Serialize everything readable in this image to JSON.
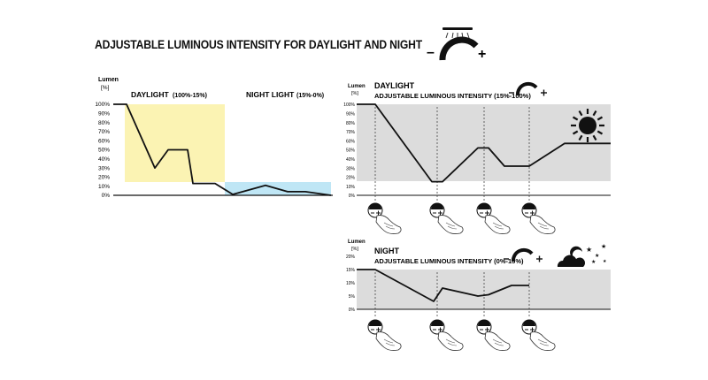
{
  "title": "ADJUSTABLE LUMINOUS INTENSITY FOR DAYLIGHT AND NIGHT",
  "overview": {
    "ylabel": "Lumen",
    "yunit": "[%]",
    "yticks": [
      "100%",
      "90%",
      "80%",
      "70%",
      "60%",
      "50%",
      "40%",
      "30%",
      "20%",
      "10%",
      "0%"
    ],
    "daylight_label": "DAYLIGHT",
    "daylight_range": "(100%-15%)",
    "night_label": "NIGHT LIGHT",
    "night_range": "(15%-0%)",
    "colors": {
      "daylight_zone": "#fbf3b3",
      "night_zone": "#bfe6f5"
    }
  },
  "day_panel": {
    "ylabel": "Lumen",
    "yunit": "[%]",
    "title": "DAYLIGHT",
    "subtitle": "ADJUSTABLE LUMINOUS INTENSITY (15%-100%)",
    "yticks": [
      "100%",
      "90%",
      "80%",
      "70%",
      "60%",
      "50%",
      "40%",
      "30%",
      "20%",
      "10%",
      "0%"
    ],
    "icon": "sun-icon",
    "colors": {
      "zone": "#dcdcdc"
    }
  },
  "night_panel": {
    "ylabel": "Lumen",
    "yunit": "[%]",
    "title": "NIGHT",
    "subtitle": "ADJUSTABLE LUMINOUS INTENSITY (0%-15%)",
    "yticks": [
      "20%",
      "15%",
      "10%",
      "5%",
      "0%"
    ],
    "icon": "moon-clouds-stars-icon",
    "colors": {
      "zone": "#dcdcdc"
    }
  },
  "dimmer_symbol": {
    "minus": "–",
    "plus": "+"
  },
  "chart_data": [
    {
      "type": "line",
      "ylabel": "Lumen",
      "ylim": [
        0,
        100
      ],
      "series": [
        {
          "values": [
            100,
            100,
            30,
            50,
            50,
            13,
            13,
            1,
            11,
            4,
            4,
            0
          ]
        }
      ],
      "zones": [
        {
          "label": "DAYLIGHT",
          "range": [
            15,
            100
          ]
        },
        {
          "label": "NIGHT LIGHT",
          "range": [
            0,
            15
          ]
        }
      ]
    },
    {
      "type": "line",
      "ylabel": "Lumen",
      "ylim": [
        0,
        100
      ],
      "series": [
        {
          "values": [
            100,
            100,
            15,
            15,
            52,
            52,
            32,
            32,
            57,
            57
          ]
        }
      ],
      "zones": [
        {
          "label": "DAYLIGHT",
          "range": [
            15,
            100
          ]
        }
      ]
    },
    {
      "type": "line",
      "ylabel": "Lumen",
      "ylim": [
        0,
        20
      ],
      "series": [
        {
          "values": [
            15,
            15,
            3,
            8,
            5,
            5.5,
            9,
            9
          ]
        }
      ],
      "zones": [
        {
          "label": "NIGHT",
          "range": [
            0,
            15
          ]
        }
      ]
    }
  ]
}
